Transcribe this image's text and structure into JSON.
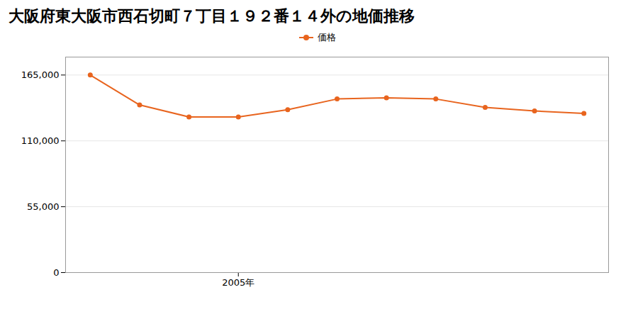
{
  "chart_data": {
    "type": "line",
    "title": "大阪府東大阪市西石切町７丁目１９２番１４外の地価推移",
    "x": [
      2002,
      2003,
      2004,
      2005,
      2006,
      2007,
      2008,
      2009,
      2010,
      2011,
      2012
    ],
    "series": [
      {
        "name": "価格",
        "color": "#e8641e",
        "marker": "circle",
        "values": [
          165000,
          140000,
          130000,
          130000,
          136000,
          145000,
          146000,
          145000,
          138000,
          135000,
          133000
        ]
      }
    ],
    "xlim": [
      2001.5,
      2012.5
    ],
    "xticks": [
      {
        "value": 2005,
        "label": "2005年"
      }
    ],
    "ylim": [
      0,
      180000
    ],
    "yticks": [
      0,
      {
        "value": 55000,
        "label": "55,000"
      },
      {
        "value": 110000,
        "label": "110,000"
      },
      {
        "value": 165000,
        "label": "165,000"
      }
    ],
    "grid": "y",
    "legend": "top"
  }
}
